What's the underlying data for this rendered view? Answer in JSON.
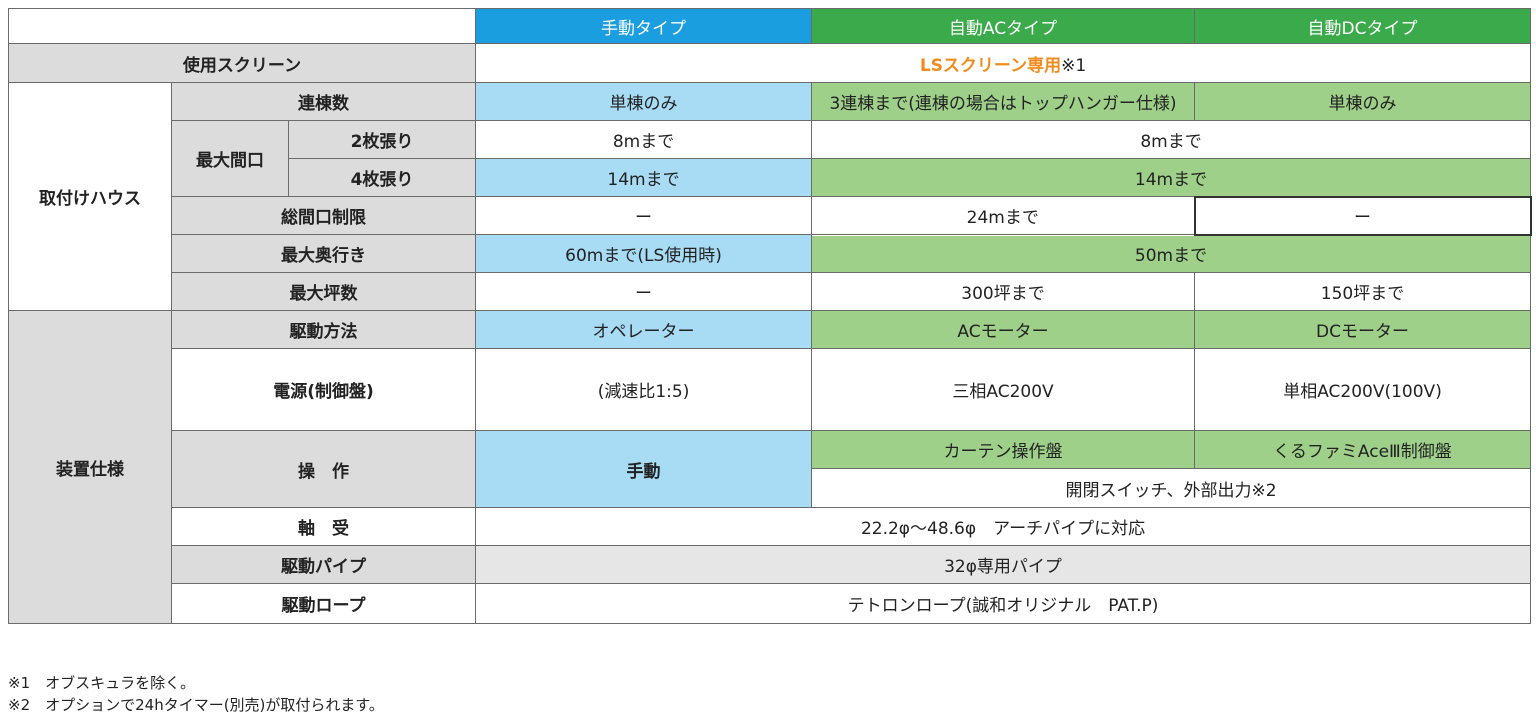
{
  "columns": {
    "manual": "手動タイプ",
    "auto_ac": "自動ACタイプ",
    "auto_dc": "自動DCタイプ"
  },
  "rows": {
    "screen": {
      "label": "使用スクリーン",
      "value_main": "LSスクリーン専用",
      "value_suffix": "※1"
    },
    "house": {
      "group": "取付けハウス",
      "spans": {
        "label": "連棟数",
        "manual": "単棟のみ",
        "auto_ac": "3連棟まで(連棟の場合はトップハンガー仕様)",
        "auto_dc": "単棟のみ"
      },
      "max_width": {
        "label": "最大間口",
        "two": {
          "label": "2枚張り",
          "manual": "8mまで",
          "auto": "8mまで"
        },
        "four": {
          "label": "4枚張り",
          "manual": "14mまで",
          "auto": "14mまで"
        }
      },
      "total_width": {
        "label": "総間口制限",
        "manual": "ー",
        "auto_ac": "24mまで",
        "auto_dc": "ー"
      },
      "max_depth": {
        "label": "最大奥行き",
        "manual": "60mまで(LS使用時)",
        "auto": "50mまで"
      },
      "max_area": {
        "label": "最大坪数",
        "manual": "ー",
        "auto_ac": "300坪まで",
        "auto_dc": "150坪まで"
      }
    },
    "device": {
      "group": "装置仕様",
      "drive": {
        "label": "駆動方法",
        "manual": "オペレーター",
        "auto_ac": "ACモーター",
        "auto_dc": "DCモーター"
      },
      "power": {
        "label": "電源(制御盤)",
        "manual": "(減速比1:5)",
        "auto_ac": "三相AC200V",
        "auto_dc": "単相AC200V(100V)"
      },
      "operation": {
        "label": "操　作",
        "manual": "手動",
        "auto_ac": "カーテン操作盤",
        "auto_dc": "くるファミAceⅢ制御盤",
        "auto_common": "開閉スイッチ、外部出力※2"
      },
      "bearing": {
        "label": "軸　受",
        "value": "22.2φ〜48.6φ　アーチパイプに対応"
      },
      "pipe": {
        "label": "駆動パイプ",
        "value": "32φ専用パイプ"
      },
      "rope": {
        "label": "駆動ロープ",
        "value": "テトロンロープ(誠和オリジナル　PAT.P)"
      }
    }
  },
  "notes": [
    "※1　オブスキュラを除く。",
    "※2　オプションで24hタイマー(別売)が取付られます。"
  ],
  "colors": {
    "manual_header": "#1a9ee0",
    "auto_header": "#3aaa4a",
    "manual_cell": "#a8dcf5",
    "auto_cell": "#9fd08a",
    "label_cell": "#dcdcdc",
    "accent_text": "#f08c1e"
  }
}
